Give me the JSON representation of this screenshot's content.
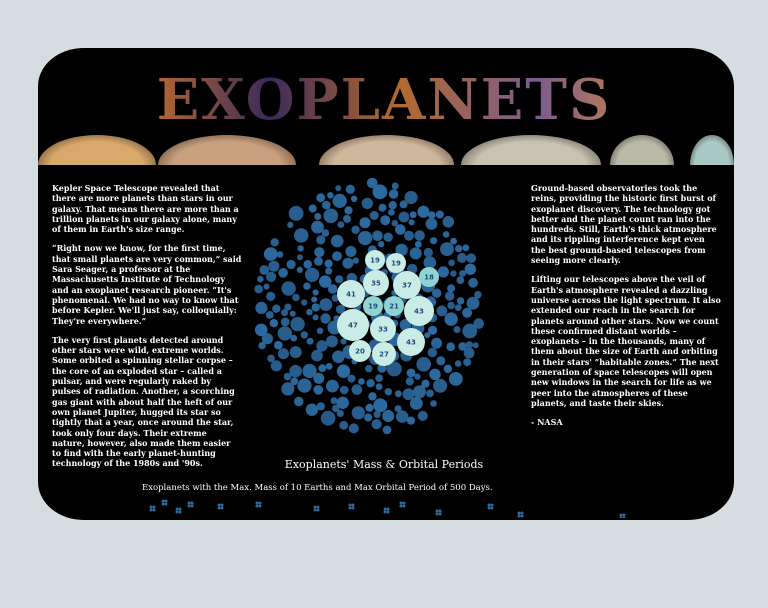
{
  "header": {
    "title": "EXOPLANETS"
  },
  "planet_strip": [
    {
      "name": "venus-like",
      "color": "#d9a86b"
    },
    {
      "name": "jupiter-like",
      "color": "#c9a07e"
    },
    {
      "name": "banded-gas-giant",
      "color": "#cfb79c"
    },
    {
      "name": "saturn-like",
      "color": "#c8c2b4"
    },
    {
      "name": "pale-giant",
      "color": "#b9b9aa"
    },
    {
      "name": "uranus-like",
      "color": "#a9c8c4"
    }
  ],
  "left_column": {
    "paragraphs": [
      "Kepler Space Telescope revealed that there are more planets than stars in our galaxy. That means there are more than a trillion planets in our galaxy alone, many of them in Earth's size range.",
      "“Right now we know, for the first time, that small planets are very common,” said Sara Seager, a professor at the Massachusetts Institute of Technology and an exoplanet research pioneer. “It's phenomenal. We had no way to know that before Kepler. We'll just say, colloquially: They're everywhere.”",
      "The very first planets detected around other stars were wild, extreme worlds. Some orbited a spinning stellar corpse – the core of an exploded star – called a pulsar, and were regularly raked by pulses of radiation. Another, a scorching gas giant with about half the heft of our own planet Jupiter, hugged its star so tightly that a year, once around the star, took only four days. Their extreme nature, however, also made them easier to find with the early planet-hunting technology of the 1980s and '90s."
    ]
  },
  "right_column": {
    "paragraphs": [
      "Ground-based observatories took the reins, providing the historic first burst of exoplanet discovery. The technology got better and the planet count ran into the hundreds. Still, Earth's thick atmosphere and its rippling interference kept even the best ground-based telescopes from seeing more clearly.",
      "Lifting our telescopes above the veil of Earth's atmosphere revealed a dazzling universe across the light spectrum. It also extended our reach in the search for planets around other stars. Now we count these confirmed distant worlds – exoplanets – in the thousands, many of them about the size of Earth and orbiting in their stars' ”habitable zones.” The next generation of space telescopes will open new windows in the search for life as we peer into the atmospheres of these planets, and taste their skies.",
      "- NASA"
    ]
  },
  "colors": {
    "background": "#d5dde1",
    "frame": "#000000",
    "bubble_dark": "#2d6aa0",
    "bubble_light": "#c9ece6",
    "bubble_mid": "#8fd3d3"
  },
  "chart_data": {
    "type": "bubble",
    "highlighted_values": [
      19,
      19,
      35,
      37,
      18,
      41,
      19,
      21,
      43,
      47,
      33,
      20,
      27,
      43
    ]
  },
  "chart_footer": {
    "title": "Exoplanets' Mass & Orbital Periods",
    "subtitle": "Exoplanets with the Max. Mass of 10 Earths and Max Orbital Period of 500 Days."
  }
}
